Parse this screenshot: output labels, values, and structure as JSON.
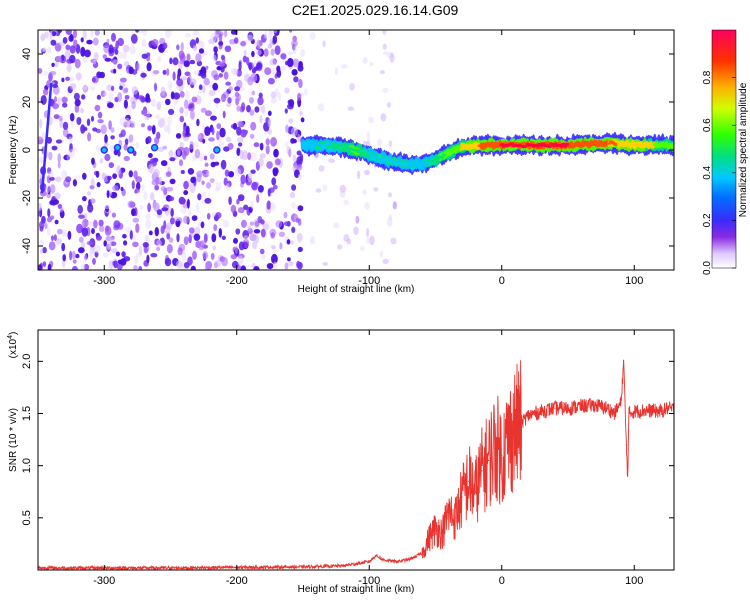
{
  "title": "C2E1.2025.029.16.14.G09",
  "colors": {
    "snr_line": "#e8332f",
    "spectrogram_noise": "#7b2ff7",
    "colorbar": [
      "#ffffff",
      "#d0a8ff",
      "#8a2be2",
      "#3a2bff",
      "#0050ff",
      "#00c0ff",
      "#00e070",
      "#7fff00",
      "#ffff00",
      "#ff8000",
      "#ff0000",
      "#ff0060"
    ]
  },
  "chart_data": [
    {
      "type": "heatmap",
      "title": "C2E1.2025.029.16.14.G09",
      "xlabel": "Height of straight line (km)",
      "ylabel": "Frequency (Hz)",
      "xlim": [
        -350,
        130
      ],
      "ylim": [
        -50,
        50
      ],
      "xticks": [
        -300,
        -200,
        -100,
        0,
        100
      ],
      "yticks": [
        -40,
        -20,
        0,
        20,
        40
      ],
      "colorbar": {
        "label": "Normalized spectral amplitude",
        "range": [
          0,
          1
        ],
        "ticks": [
          "0.0",
          "0.2",
          "0.4",
          "0.6",
          "0.8"
        ],
        "tick_values": [
          0.0,
          0.2,
          0.4,
          0.6,
          0.8
        ]
      },
      "ridge": {
        "description_x": [
          -150,
          -130,
          -110,
          -95,
          -80,
          -70,
          -60,
          -50,
          -40,
          -30,
          -20,
          -10,
          0,
          20,
          50,
          80,
          100,
          130
        ],
        "frequency": [
          2,
          2,
          0,
          -3,
          -5,
          -6,
          -6,
          -4,
          -1,
          1,
          2,
          2,
          2,
          2,
          2,
          3,
          2,
          2
        ],
        "amplitude": [
          0.3,
          0.45,
          0.55,
          0.4,
          0.45,
          0.4,
          0.35,
          0.5,
          0.6,
          0.7,
          0.8,
          0.9,
          0.95,
          0.95,
          0.95,
          0.85,
          0.8,
          0.6
        ]
      }
    },
    {
      "type": "line",
      "xlabel": "Height of straight line (km)",
      "ylabel": "SNR (10 * v/v)",
      "y_multiplier": "(x10^4)",
      "y_multiplier_base": "(x10",
      "y_multiplier_exp": "4",
      "y_multiplier_close": ")",
      "xlim": [
        -350,
        130
      ],
      "ylim": [
        0,
        23000
      ],
      "xticks": [
        -300,
        -200,
        -100,
        0,
        100
      ],
      "yticks": [
        0.5,
        1.0,
        1.5,
        2.0
      ],
      "ytick_labels": [
        "0.5",
        "1.0",
        "1.5",
        "2.0"
      ],
      "series": [
        {
          "x": [
            -350,
            -300,
            -250,
            -200,
            -150,
            -120,
            -100,
            -95,
            -90,
            -80,
            -70,
            -60,
            -55,
            -50,
            -45,
            -40,
            -35,
            -30,
            -25,
            -20,
            -15,
            -10,
            -5,
            0,
            5,
            10,
            20,
            30,
            40,
            50,
            60,
            70,
            80,
            85,
            90,
            92,
            94,
            95,
            96,
            100,
            110,
            120,
            125,
            130
          ],
          "y": [
            200,
            200,
            200,
            250,
            300,
            400,
            800,
            1400,
            1000,
            800,
            1000,
            1600,
            3000,
            4000,
            3500,
            5500,
            5000,
            7000,
            8500,
            7500,
            9500,
            10500,
            12000,
            11000,
            12500,
            13500,
            14800,
            15200,
            15500,
            15500,
            15700,
            15800,
            15500,
            15000,
            16000,
            20000,
            12000,
            9000,
            15000,
            15200,
            15300,
            15200,
            15500,
            15400
          ]
        }
      ]
    }
  ]
}
